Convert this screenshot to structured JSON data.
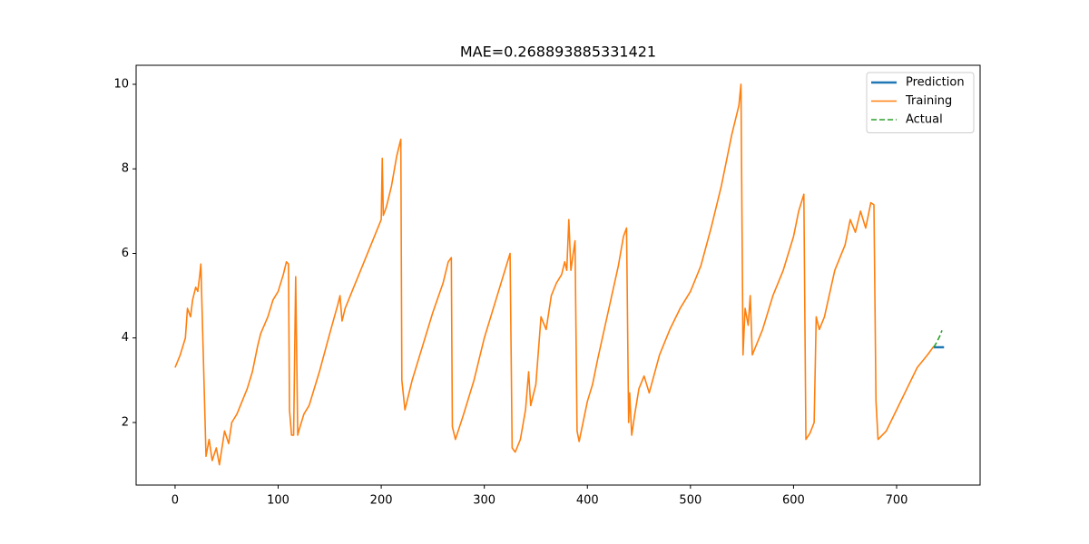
{
  "chart_data": {
    "type": "line",
    "title": "MAE=0.268893885331421",
    "xlim": [
      -37.8,
      781
    ],
    "ylim": [
      0.52,
      10.45
    ],
    "xticks": [
      0,
      100,
      200,
      300,
      400,
      500,
      600,
      700
    ],
    "yticks": [
      2,
      4,
      6,
      8,
      10
    ],
    "legend": "upper right",
    "series": [
      {
        "name": "Prediction",
        "color": "#1f77b4",
        "linestyle": "solid",
        "x": [
          736,
          738,
          740,
          742,
          744,
          746
        ],
        "values": [
          3.78,
          3.78,
          3.78,
          3.78,
          3.78,
          3.78
        ]
      },
      {
        "name": "Training",
        "color": "#ff7f0e",
        "linestyle": "solid",
        "x": [
          0,
          5,
          10,
          12,
          15,
          17,
          20,
          22,
          24,
          25,
          30,
          33,
          36,
          40,
          43,
          48,
          52,
          55,
          60,
          65,
          70,
          75,
          80,
          83,
          90,
          95,
          100,
          105,
          108,
          110,
          111,
          113,
          115,
          117,
          119,
          120,
          125,
          130,
          140,
          150,
          158,
          160,
          162,
          165,
          170,
          180,
          190,
          200,
          201,
          202,
          205,
          210,
          215,
          219,
          220,
          223,
          230,
          240,
          250,
          260,
          265,
          268,
          269,
          272,
          280,
          290,
          300,
          310,
          320,
          325,
          327,
          330,
          335,
          340,
          343,
          345,
          350,
          355,
          360,
          365,
          370,
          375,
          378,
          380,
          382,
          384,
          388,
          390,
          392,
          400,
          405,
          410,
          420,
          430,
          435,
          438,
          440,
          441,
          443,
          446,
          450,
          455,
          460,
          470,
          480,
          490,
          500,
          510,
          520,
          530,
          540,
          547,
          549,
          551,
          553,
          556,
          558,
          560,
          565,
          570,
          580,
          590,
          600,
          605,
          610,
          612,
          616,
          620,
          622,
          625,
          630,
          640,
          650,
          655,
          660,
          665,
          670,
          675,
          678,
          680,
          682,
          690,
          700,
          710,
          720,
          730,
          736
        ],
        "values": [
          3.3,
          3.6,
          4.0,
          4.7,
          4.5,
          4.9,
          5.2,
          5.1,
          5.5,
          5.75,
          1.2,
          1.6,
          1.1,
          1.4,
          1.0,
          1.8,
          1.5,
          2.0,
          2.2,
          2.5,
          2.8,
          3.2,
          3.8,
          4.1,
          4.5,
          4.9,
          5.1,
          5.5,
          5.8,
          5.75,
          2.3,
          1.7,
          1.7,
          5.45,
          1.7,
          1.8,
          2.2,
          2.4,
          3.2,
          4.1,
          4.8,
          5.0,
          4.4,
          4.7,
          5.0,
          5.6,
          6.2,
          6.8,
          8.25,
          6.9,
          7.1,
          7.6,
          8.3,
          8.7,
          3.0,
          2.3,
          3.0,
          3.8,
          4.6,
          5.3,
          5.8,
          5.9,
          1.9,
          1.6,
          2.2,
          3.0,
          4.0,
          4.8,
          5.6,
          6.0,
          1.4,
          1.3,
          1.6,
          2.3,
          3.2,
          2.4,
          2.9,
          4.5,
          4.2,
          5.0,
          5.3,
          5.5,
          5.8,
          5.6,
          6.8,
          5.6,
          6.3,
          1.8,
          1.55,
          2.5,
          2.9,
          3.5,
          4.6,
          5.7,
          6.4,
          6.6,
          2.0,
          2.7,
          1.7,
          2.2,
          2.8,
          3.1,
          2.7,
          3.6,
          4.2,
          4.7,
          5.1,
          5.7,
          6.6,
          7.6,
          8.8,
          9.5,
          10.0,
          3.6,
          4.7,
          4.3,
          5.0,
          3.6,
          3.9,
          4.2,
          5.0,
          5.6,
          6.4,
          7.0,
          7.4,
          1.6,
          1.75,
          2.0,
          4.5,
          4.2,
          4.5,
          5.6,
          6.2,
          6.8,
          6.5,
          7.0,
          6.6,
          7.2,
          7.15,
          2.5,
          1.6,
          1.8,
          2.3,
          2.8,
          3.3,
          3.6,
          3.8
        ]
      },
      {
        "name": "Actual",
        "color": "#2ca02c",
        "linestyle": "dashed",
        "x": [
          736,
          739,
          742,
          744
        ],
        "values": [
          3.78,
          3.9,
          4.05,
          4.18
        ]
      }
    ]
  }
}
